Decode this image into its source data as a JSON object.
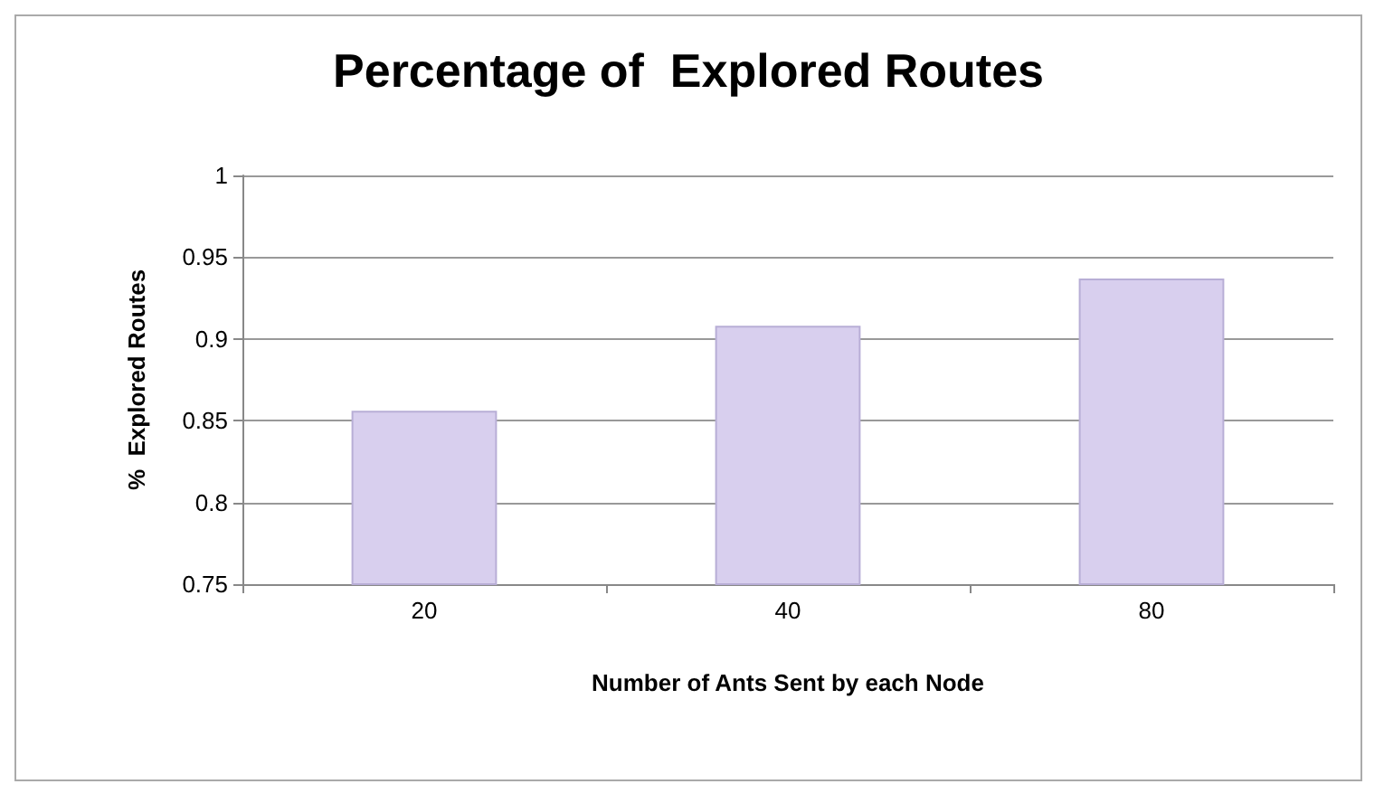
{
  "chart_data": {
    "type": "bar",
    "title": "Percentage of  Explored Routes",
    "xlabel": "Number of Ants Sent by each Node",
    "ylabel": "%  Explored Routes",
    "categories": [
      "20",
      "40",
      "80"
    ],
    "values": [
      0.856,
      0.908,
      0.937
    ],
    "color": "#d8cfee",
    "ylim": [
      0.75,
      1
    ],
    "yticks": [
      0.75,
      0.8,
      0.85,
      0.9,
      0.95,
      1
    ],
    "grid": "y"
  }
}
